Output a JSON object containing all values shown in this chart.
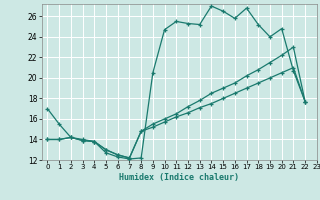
{
  "xlabel": "Humidex (Indice chaleur)",
  "bg_color": "#cde8e4",
  "grid_color": "#ffffff",
  "line_color": "#1a7a6e",
  "xlim": [
    -0.5,
    23
  ],
  "ylim": [
    12,
    27.2
  ],
  "xticks": [
    0,
    1,
    2,
    3,
    4,
    5,
    6,
    7,
    8,
    9,
    10,
    11,
    12,
    13,
    14,
    15,
    16,
    17,
    18,
    19,
    20,
    21,
    22,
    23
  ],
  "yticks": [
    12,
    14,
    16,
    18,
    20,
    22,
    24,
    26
  ],
  "line1_x": [
    0,
    1,
    2,
    3,
    4,
    5,
    6,
    7,
    8,
    9,
    10,
    11,
    12,
    13,
    14,
    15,
    16,
    17,
    18,
    19,
    20,
    21,
    22
  ],
  "line1_y": [
    17.0,
    15.5,
    14.2,
    14.0,
    13.8,
    12.7,
    12.3,
    12.1,
    12.2,
    20.5,
    24.7,
    25.5,
    25.3,
    25.2,
    27.0,
    26.5,
    25.8,
    26.8,
    25.2,
    24.0,
    24.8,
    20.7,
    17.7
  ],
  "line2_x": [
    0,
    1,
    2,
    3,
    4,
    5,
    6,
    7,
    8,
    9,
    10,
    11,
    12,
    13,
    14,
    15,
    16,
    17,
    18,
    19,
    20,
    21,
    22
  ],
  "line2_y": [
    14.0,
    14.0,
    14.2,
    13.9,
    13.8,
    13.0,
    12.5,
    12.2,
    14.8,
    15.5,
    16.0,
    16.5,
    17.2,
    17.8,
    18.5,
    19.0,
    19.5,
    20.2,
    20.8,
    21.5,
    22.2,
    23.0,
    17.7
  ],
  "line3_x": [
    0,
    1,
    2,
    3,
    4,
    5,
    6,
    7,
    8,
    9,
    10,
    11,
    12,
    13,
    14,
    15,
    16,
    17,
    18,
    19,
    20,
    21,
    22
  ],
  "line3_y": [
    14.0,
    14.0,
    14.2,
    13.9,
    13.8,
    13.0,
    12.5,
    12.2,
    14.8,
    15.2,
    15.7,
    16.2,
    16.6,
    17.1,
    17.5,
    18.0,
    18.5,
    19.0,
    19.5,
    20.0,
    20.5,
    21.0,
    17.7
  ]
}
